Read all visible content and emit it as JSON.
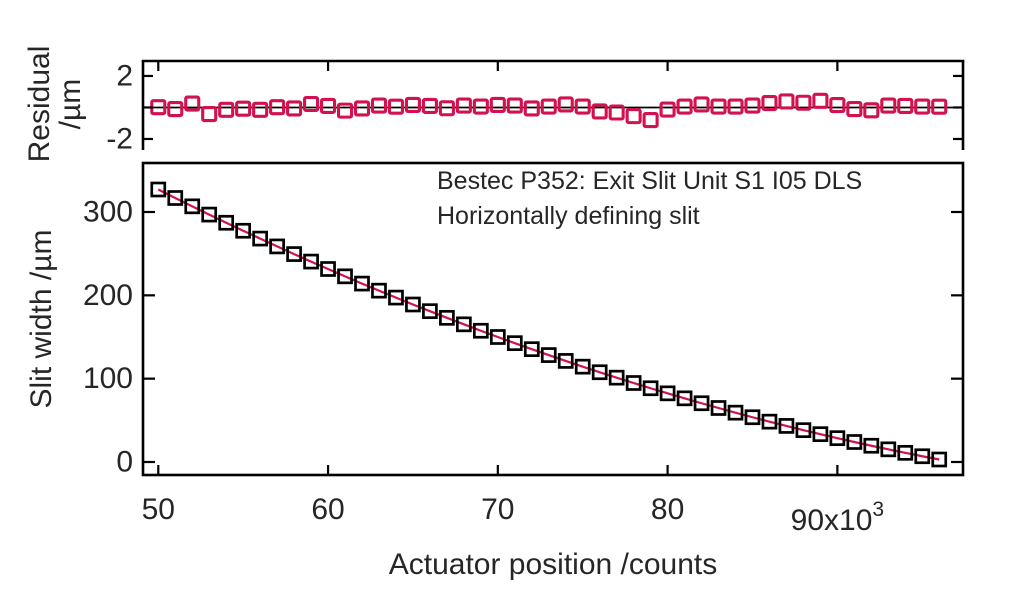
{
  "chart_data": {
    "type": "scatter",
    "annotation_line1": "Bestec P352: Exit Slit Unit S1 I05 DLS",
    "annotation_line2": "Horizontally defining slit",
    "xlabel": "Actuator position /counts",
    "x_tick_values": [
      50000,
      60000,
      70000,
      80000,
      90000
    ],
    "x_tick_labels": [
      "50",
      "60",
      "70",
      "80",
      "90x10"
    ],
    "x_tick_exponent": "3",
    "xlim": [
      49100,
      97400
    ],
    "main_panel": {
      "ylabel": "Slit width /µm",
      "y_tick_values": [
        0,
        100,
        200,
        300
      ],
      "y_tick_labels": [
        "0",
        "100",
        "200",
        "300"
      ],
      "ylim": [
        -15.6,
        358.8
      ],
      "marker": "open-square",
      "fit": "quadratic fit line"
    },
    "residual_panel": {
      "ylabel_line1": "Residual",
      "ylabel_line2": "/µm",
      "y_tick_values": [
        2,
        0,
        -2
      ],
      "y_tick_labels": [
        "2",
        "",
        "-2"
      ],
      "ylim": [
        -2.7,
        2.95
      ],
      "marker": "open-square"
    },
    "actuator_counts": [
      50000,
      51000,
      52000,
      53000,
      54000,
      55000,
      56000,
      57000,
      58000,
      59000,
      60000,
      61000,
      62000,
      63000,
      64000,
      65000,
      66000,
      67000,
      68000,
      69000,
      70000,
      71000,
      72000,
      73000,
      74000,
      75000,
      76000,
      77000,
      78000,
      79000,
      80000,
      81000,
      82000,
      83000,
      84000,
      85000,
      86000,
      87000,
      88000,
      89000,
      90000,
      91000,
      92000,
      93000,
      94000,
      95000,
      96000
    ],
    "slit_width_um": [
      327,
      316.8,
      306.8,
      296.9,
      287.1,
      277.5,
      268.1,
      258.7,
      249.5,
      240.5,
      231.6,
      222.8,
      214.1,
      205.6,
      197.3,
      189,
      181,
      173,
      165.2,
      157.5,
      150,
      142.6,
      135.4,
      128.3,
      121.3,
      114.4,
      107.7,
      101.2,
      94.8,
      88.5,
      82.4,
      76.4,
      70.5,
      64.8,
      59.2,
      53.7,
      48.4,
      43.3,
      38.2,
      33.4,
      28.6,
      24,
      19.5,
      15.2,
      11,
      6.9,
      3
    ],
    "residual_um": [
      0.02,
      -0.1,
      0.25,
      -0.42,
      -0.15,
      -0.08,
      -0.15,
      0.02,
      -0.06,
      0.22,
      0.1,
      -0.2,
      -0.06,
      0.12,
      0.05,
      0.16,
      0.1,
      -0.05,
      0.12,
      0.06,
      0.16,
      0.12,
      -0.06,
      0.06,
      0.19,
      0.06,
      -0.25,
      -0.32,
      -0.55,
      -0.8,
      -0.13,
      0.06,
      0.19,
      0.06,
      0.06,
      0.12,
      0.28,
      0.38,
      0.3,
      0.42,
      0.15,
      -0.1,
      -0.18,
      0.12,
      0.1,
      0.06,
      0.05
    ],
    "colors": {
      "marker_main": "#000000",
      "marker_residual": "#d2114e",
      "fit_line": "#d2114e",
      "axis": "#000000",
      "text": "#262626"
    }
  }
}
